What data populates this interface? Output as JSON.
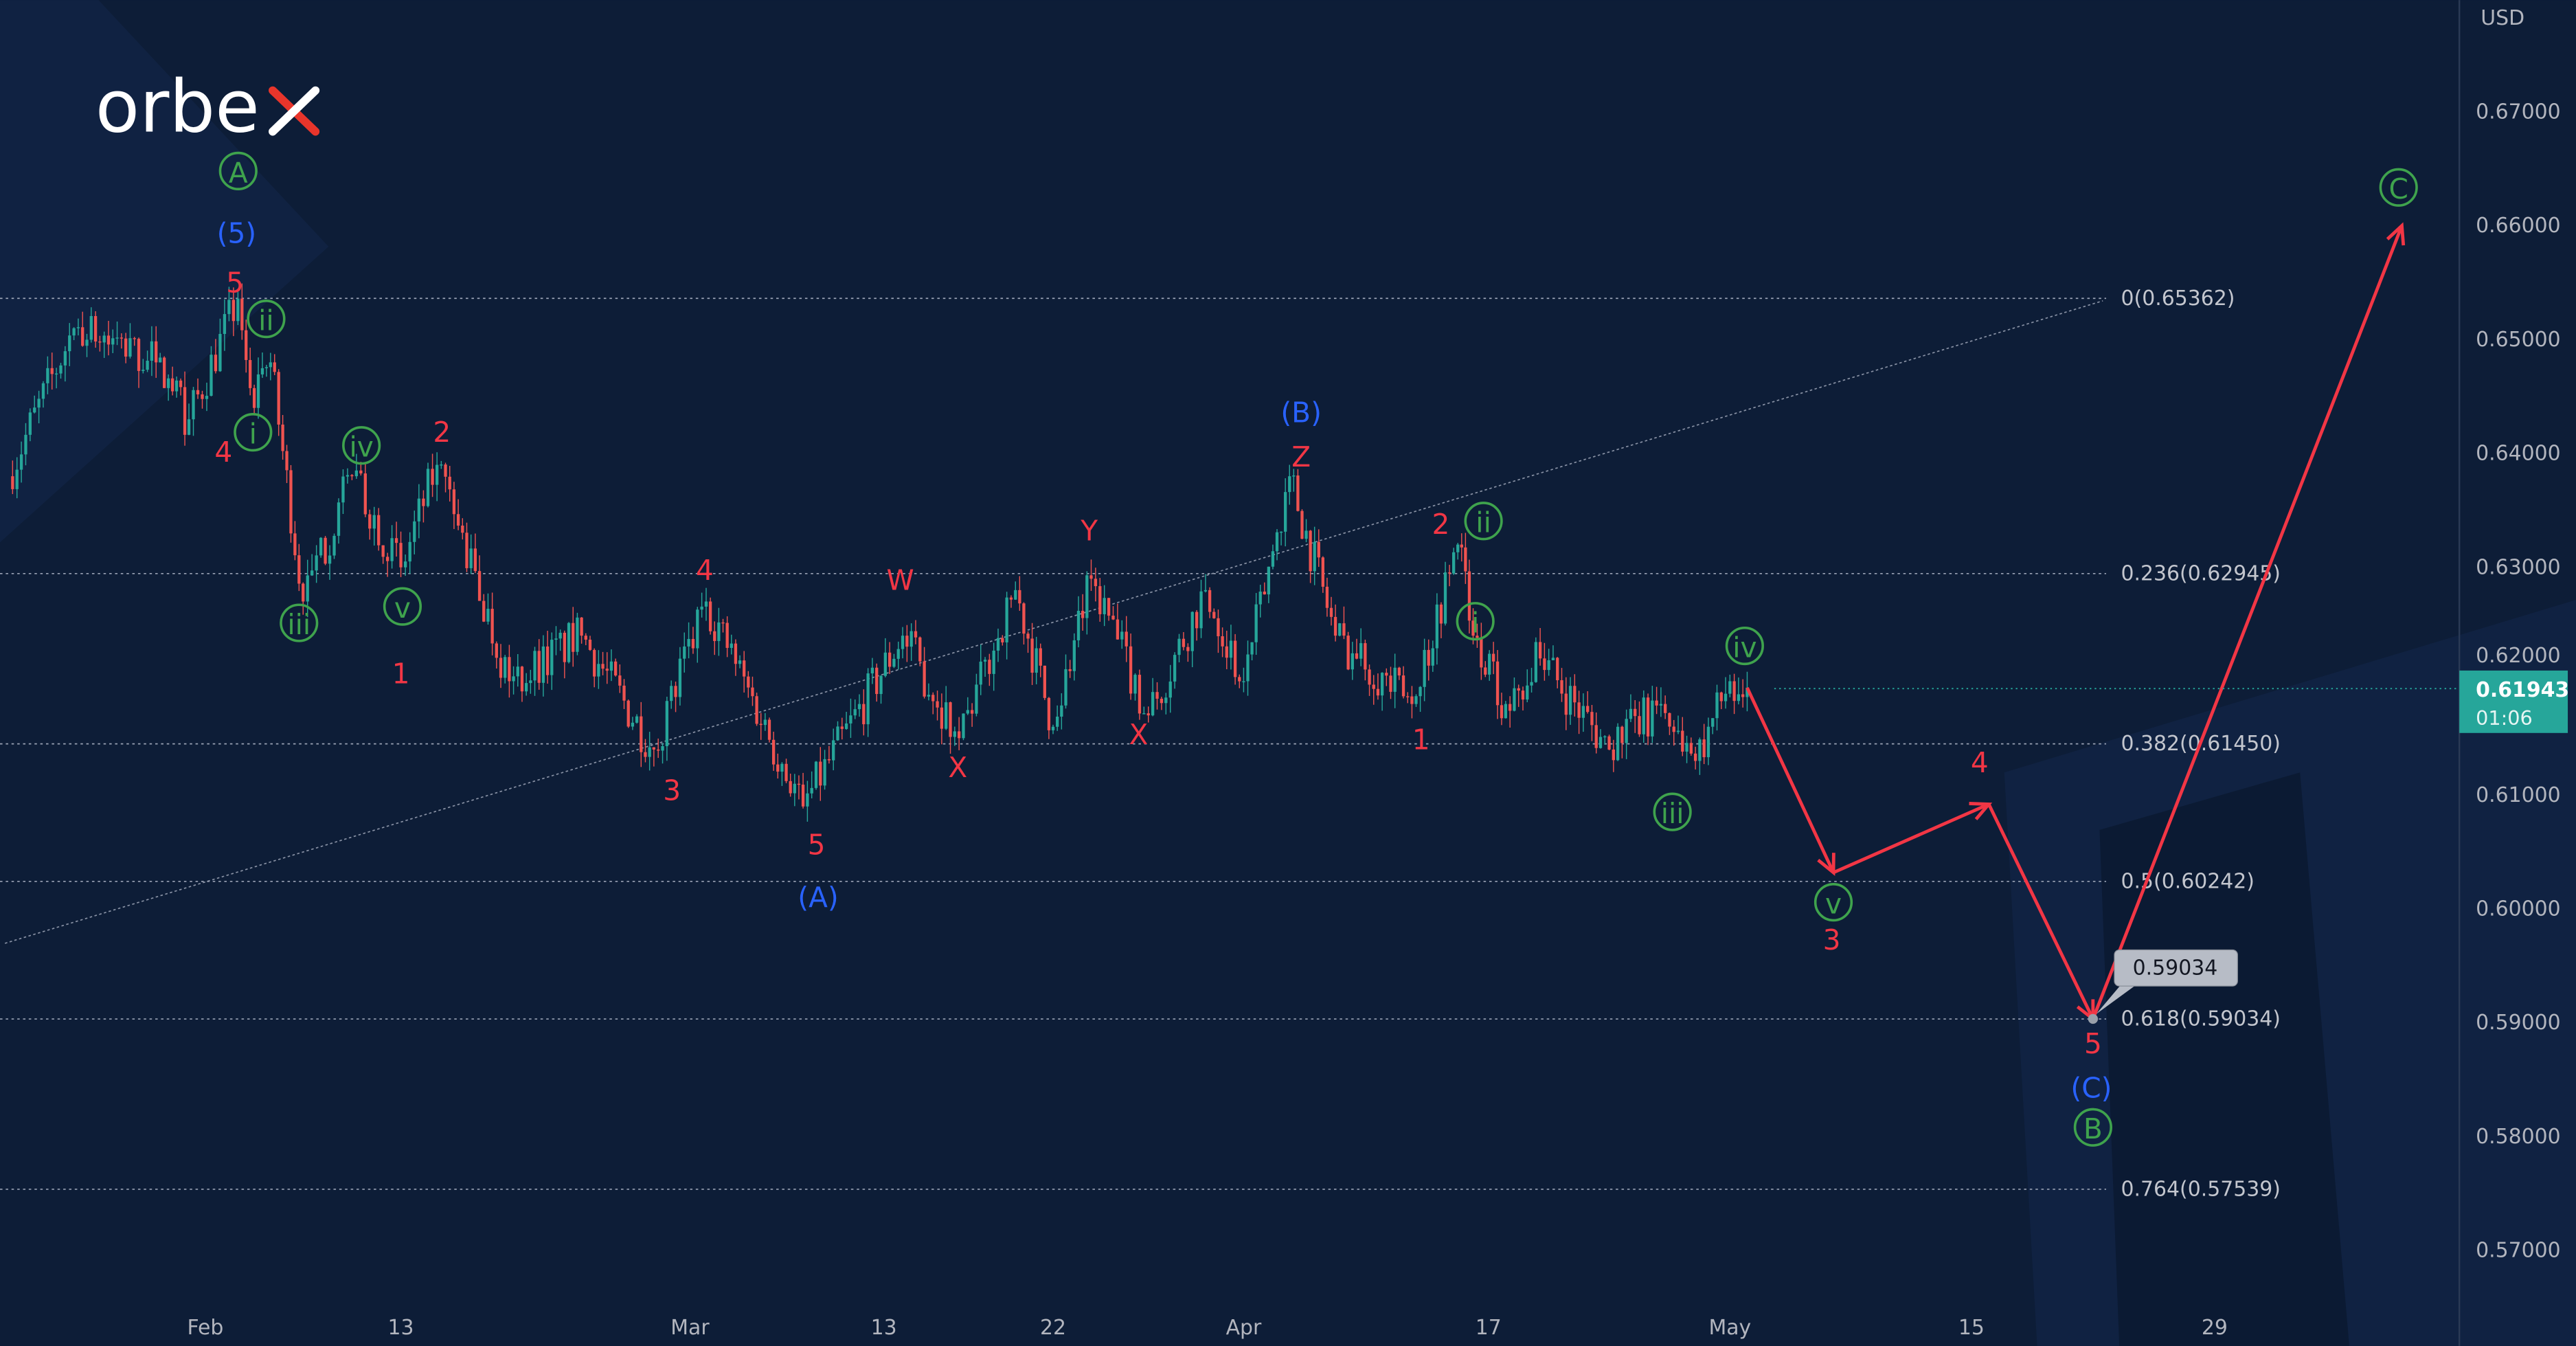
{
  "logo": {
    "text": "orbex",
    "accent_color": "#e8352b"
  },
  "currency": "USD",
  "colors": {
    "background": "#0d1d37",
    "up": "#26a69a",
    "down": "#ef5350",
    "projection": "#f23645",
    "wave_blue": "#2962ff",
    "wave_green": "#3fa34d",
    "wave_red": "#f23645"
  },
  "last_price": {
    "value": "0.61943",
    "countdown": "01:06"
  },
  "callout": {
    "value": "0.59034"
  },
  "chart_data": {
    "type": "candlestick",
    "note_free": true,
    "y_ticks": [
      "0.67000",
      "0.66000",
      "0.65000",
      "0.64000",
      "0.63000",
      "0.62000",
      "0.61000",
      "0.60000",
      "0.59000",
      "0.58000",
      "0.57000"
    ],
    "ylim": [
      0.5655,
      0.6765
    ],
    "x_ticks": [
      "Feb",
      "13",
      "Mar",
      "13",
      "22",
      "Apr",
      "17",
      "May",
      "15",
      "29"
    ],
    "price_path": [
      [
        "Jan 20",
        0.638
      ],
      [
        "Jan 24",
        0.651
      ],
      [
        "Jan 29",
        0.648
      ],
      [
        "Jan 31",
        0.643
      ],
      [
        "Feb 3",
        0.6536
      ],
      [
        "Feb 4",
        0.644
      ],
      [
        "Feb 5",
        0.648
      ],
      [
        "Feb 7",
        0.627
      ],
      [
        "Feb 10",
        0.638
      ],
      [
        "Feb 13",
        0.63
      ],
      [
        "Feb 15",
        0.639
      ],
      [
        "Feb 19",
        0.62
      ],
      [
        "Feb 23",
        0.624
      ],
      [
        "Feb 27",
        0.614
      ],
      [
        "Mar 2",
        0.627
      ],
      [
        "Mar 8",
        0.609
      ],
      [
        "Mar 14",
        0.624
      ],
      [
        "Mar 17",
        0.615
      ],
      [
        "Mar 20",
        0.628
      ],
      [
        "Mar 22",
        0.616
      ],
      [
        "Mar 24",
        0.629
      ],
      [
        "Mar 27",
        0.617
      ],
      [
        "Mar 30",
        0.628
      ],
      [
        "Apr 1",
        0.62
      ],
      [
        "Apr 4",
        0.638
      ],
      [
        "Apr 7",
        0.624
      ],
      [
        "Apr 12",
        0.618
      ],
      [
        "Apr 15",
        0.632
      ],
      [
        "Apr 16",
        0.624
      ],
      [
        "Apr 18",
        0.618
      ],
      [
        "Apr 20",
        0.622
      ],
      [
        "Apr 24",
        0.614
      ],
      [
        "Apr 27",
        0.618
      ],
      [
        "Apr 29",
        0.613
      ],
      [
        "May 1",
        0.62
      ],
      [
        "May 2",
        0.61943
      ]
    ],
    "projection": [
      [
        "May 2",
        0.61943
      ],
      [
        "May 7",
        0.6032
      ],
      [
        "May 16",
        0.6092
      ],
      [
        "May 22",
        0.59034
      ],
      [
        "Jun 8",
        0.66
      ]
    ],
    "fib_levels": [
      {
        "ratio": "0",
        "price": 0.65362,
        "label": "0(0.65362)"
      },
      {
        "ratio": "0.236",
        "price": 0.62945,
        "label": "0.236(0.62945)"
      },
      {
        "ratio": "0.382",
        "price": 0.6145,
        "label": "0.382(0.61450)"
      },
      {
        "ratio": "0.5",
        "price": 0.60242,
        "label": "0.5(0.60242)"
      },
      {
        "ratio": "0.618",
        "price": 0.59034,
        "label": "0.618(0.59034)"
      },
      {
        "ratio": "0.764",
        "price": 0.57539,
        "label": "0.764(0.57539)"
      }
    ],
    "wave_labels": [
      {
        "text": "A",
        "style": "green-circle"
      },
      {
        "text": "ii",
        "style": "green-circle"
      },
      {
        "text": "i",
        "style": "green-circle"
      },
      {
        "text": "iv",
        "style": "green-circle"
      },
      {
        "text": "iii",
        "style": "green-circle"
      },
      {
        "text": "v",
        "style": "green-circle"
      },
      {
        "text": "ii",
        "style": "green-circle"
      },
      {
        "text": "i",
        "style": "green-circle"
      },
      {
        "text": "iv",
        "style": "green-circle"
      },
      {
        "text": "iii",
        "style": "green-circle"
      },
      {
        "text": "v",
        "style": "green-circle"
      },
      {
        "text": "C",
        "style": "green-circle"
      },
      {
        "text": "B",
        "style": "green-circle"
      },
      {
        "text": "(5)",
        "style": "blue"
      },
      {
        "text": "(B)",
        "style": "blue"
      },
      {
        "text": "(A)",
        "style": "blue"
      },
      {
        "text": "(C)",
        "style": "blue"
      },
      {
        "text": "5",
        "style": "red"
      },
      {
        "text": "4",
        "style": "red"
      },
      {
        "text": "2",
        "style": "red"
      },
      {
        "text": "1",
        "style": "red"
      },
      {
        "text": "4",
        "style": "red"
      },
      {
        "text": "3",
        "style": "red"
      },
      {
        "text": "5",
        "style": "red"
      },
      {
        "text": "W",
        "style": "red"
      },
      {
        "text": "X",
        "style": "red"
      },
      {
        "text": "Y",
        "style": "red"
      },
      {
        "text": "X",
        "style": "red"
      },
      {
        "text": "Z",
        "style": "red"
      },
      {
        "text": "2",
        "style": "red"
      },
      {
        "text": "1",
        "style": "red"
      },
      {
        "text": "4",
        "style": "red"
      },
      {
        "text": "3",
        "style": "red"
      },
      {
        "text": "5",
        "style": "red"
      }
    ]
  }
}
